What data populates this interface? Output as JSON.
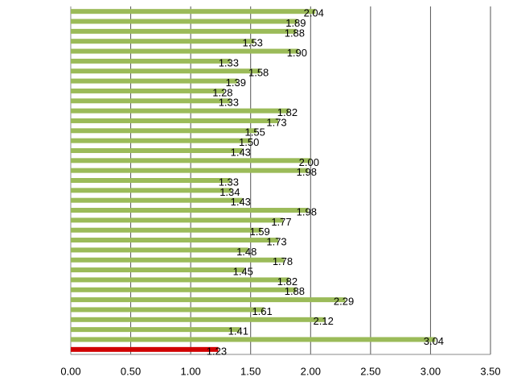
{
  "chart_data": {
    "type": "bar",
    "orientation": "horizontal",
    "values": [
      2.04,
      1.89,
      1.88,
      1.53,
      1.9,
      1.33,
      1.58,
      1.39,
      1.28,
      1.33,
      1.82,
      1.73,
      1.55,
      1.5,
      1.43,
      2.0,
      1.98,
      1.33,
      1.34,
      1.43,
      1.98,
      1.77,
      1.59,
      1.73,
      1.48,
      1.78,
      1.45,
      1.82,
      1.88,
      2.29,
      1.61,
      2.12,
      1.41,
      3.04,
      1.23
    ],
    "value_labels": [
      "2.04",
      "1.89",
      "1.88",
      "1.53",
      "1.90",
      "1.33",
      "1.58",
      "1.39",
      "1.28",
      "1.33",
      "1.82",
      "1.73",
      "1.55",
      "1.50",
      "1.43",
      "2.00",
      "1.98",
      "1.33",
      "1.34",
      "1.43",
      "1.98",
      "1.77",
      "1.59",
      "1.73",
      "1.48",
      "1.78",
      "1.45",
      "1.82",
      "1.88",
      "2.29",
      "1.61",
      "2.12",
      "1.41",
      "3.04",
      "1.23"
    ],
    "colors": [
      "#9bbb59",
      "#9bbb59",
      "#9bbb59",
      "#9bbb59",
      "#9bbb59",
      "#9bbb59",
      "#9bbb59",
      "#9bbb59",
      "#9bbb59",
      "#9bbb59",
      "#9bbb59",
      "#9bbb59",
      "#9bbb59",
      "#9bbb59",
      "#9bbb59",
      "#9bbb59",
      "#9bbb59",
      "#9bbb59",
      "#9bbb59",
      "#9bbb59",
      "#9bbb59",
      "#9bbb59",
      "#9bbb59",
      "#9bbb59",
      "#9bbb59",
      "#9bbb59",
      "#9bbb59",
      "#9bbb59",
      "#9bbb59",
      "#9bbb59",
      "#9bbb59",
      "#9bbb59",
      "#9bbb59",
      "#9bbb59",
      "#d00000"
    ],
    "xlim": [
      0,
      3.5
    ],
    "xticks": [
      {
        "value": 0,
        "label": "0.00"
      },
      {
        "value": 0.5,
        "label": "0.50"
      },
      {
        "value": 1,
        "label": "1.00"
      },
      {
        "value": 1.5,
        "label": "1.50"
      },
      {
        "value": 2,
        "label": "2.00"
      },
      {
        "value": 2.5,
        "label": "2.50"
      },
      {
        "value": 3,
        "label": "3.00"
      },
      {
        "value": 3.5,
        "label": "3.50"
      }
    ],
    "grid": true
  }
}
